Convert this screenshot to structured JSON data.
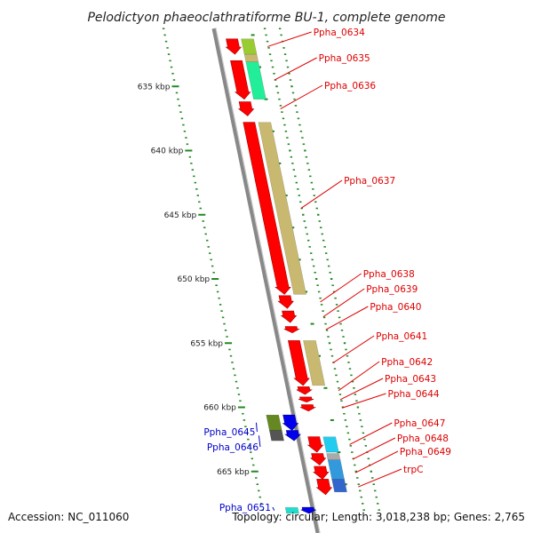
{
  "title": "Pelodictyon phaeoclathratiforme BU-1, complete genome",
  "footer": {
    "accession": "Accession: NC_011060",
    "topology": "Topology: circular; Length: 3,018,238 bp; Genes: 2,765"
  },
  "colors": {
    "forward_label": "#dd0000",
    "reverse_label": "#0000cc",
    "forward_gene": "#ff0000",
    "reverse_gene": "#0000ee",
    "backbone": "#888888",
    "tick": "#228822"
  },
  "kbp_ticks": [
    {
      "label": "635 kbp",
      "kbp": 635
    },
    {
      "label": "640 kbp",
      "kbp": 640
    },
    {
      "label": "645 kbp",
      "kbp": 645
    },
    {
      "label": "650 kbp",
      "kbp": 650
    },
    {
      "label": "655 kbp",
      "kbp": 655
    },
    {
      "label": "660 kbp",
      "kbp": 660
    },
    {
      "label": "665 kbp",
      "kbp": 665
    }
  ],
  "forward_genes": [
    {
      "name": "Ppha_0634",
      "start_kbp": 631.3,
      "end_kbp": 632.5
    },
    {
      "name": "Ppha_0635",
      "start_kbp": 633.0,
      "end_kbp": 636.0
    },
    {
      "name": "Ppha_0636",
      "start_kbp": 636.2,
      "end_kbp": 637.3
    },
    {
      "name": "Ppha_0637",
      "start_kbp": 637.8,
      "end_kbp": 651.2
    },
    {
      "name": "Ppha_0638",
      "start_kbp": 651.3,
      "end_kbp": 652.3
    },
    {
      "name": "Ppha_0639",
      "start_kbp": 652.5,
      "end_kbp": 653.4
    },
    {
      "name": "Ppha_0640",
      "start_kbp": 653.7,
      "end_kbp": 654.2
    },
    {
      "name": "Ppha_0641",
      "start_kbp": 654.8,
      "end_kbp": 658.3
    },
    {
      "name": "Ppha_0642",
      "start_kbp": 658.4,
      "end_kbp": 659.0
    },
    {
      "name": "Ppha_0643",
      "start_kbp": 659.2,
      "end_kbp": 659.6
    },
    {
      "name": "Ppha_0644",
      "start_kbp": 659.8,
      "end_kbp": 660.3
    },
    {
      "name": "Ppha_0647",
      "start_kbp": 662.3,
      "end_kbp": 663.5
    },
    {
      "name": "Ppha_0648",
      "start_kbp": 663.6,
      "end_kbp": 664.5
    },
    {
      "name": "Ppha_0649",
      "start_kbp": 664.6,
      "end_kbp": 665.6
    },
    {
      "name": "trpC",
      "start_kbp": 665.6,
      "end_kbp": 666.8
    }
  ],
  "reverse_genes": [
    {
      "name": "Ppha_0645",
      "start_kbp": 660.6,
      "end_kbp": 661.8
    },
    {
      "name": "Ppha_0646",
      "start_kbp": 661.8,
      "end_kbp": 662.6
    },
    {
      "name": "Ppha_0651",
      "start_kbp": 667.8,
      "end_kbp": 668.8
    }
  ],
  "cog_bars": [
    {
      "side": "forward",
      "color": "#99cc33",
      "start_kbp": 631.3,
      "end_kbp": 632.5
    },
    {
      "side": "forward",
      "color": "#c8b870",
      "start_kbp": 632.5,
      "end_kbp": 633.1
    },
    {
      "side": "forward",
      "color": "#22ee99",
      "start_kbp": 633.1,
      "end_kbp": 636.0
    },
    {
      "side": "forward",
      "color": "#c8b870",
      "start_kbp": 637.8,
      "end_kbp": 651.2
    },
    {
      "side": "forward",
      "color": "#c8b870",
      "start_kbp": 654.8,
      "end_kbp": 658.3
    },
    {
      "side": "forward",
      "color": "#22ccee",
      "start_kbp": 662.3,
      "end_kbp": 663.5
    },
    {
      "side": "forward",
      "color": "#aaaaaa",
      "start_kbp": 663.6,
      "end_kbp": 664.1
    },
    {
      "side": "forward",
      "color": "#3399dd",
      "start_kbp": 664.1,
      "end_kbp": 665.6
    },
    {
      "side": "forward",
      "color": "#3366cc",
      "start_kbp": 665.6,
      "end_kbp": 666.6
    },
    {
      "side": "reverse",
      "color": "#668822",
      "start_kbp": 660.6,
      "end_kbp": 661.8
    },
    {
      "side": "reverse",
      "color": "#555555",
      "start_kbp": 661.8,
      "end_kbp": 662.6
    },
    {
      "side": "reverse",
      "color": "#22ddcc",
      "start_kbp": 667.8,
      "end_kbp": 668.8
    }
  ]
}
